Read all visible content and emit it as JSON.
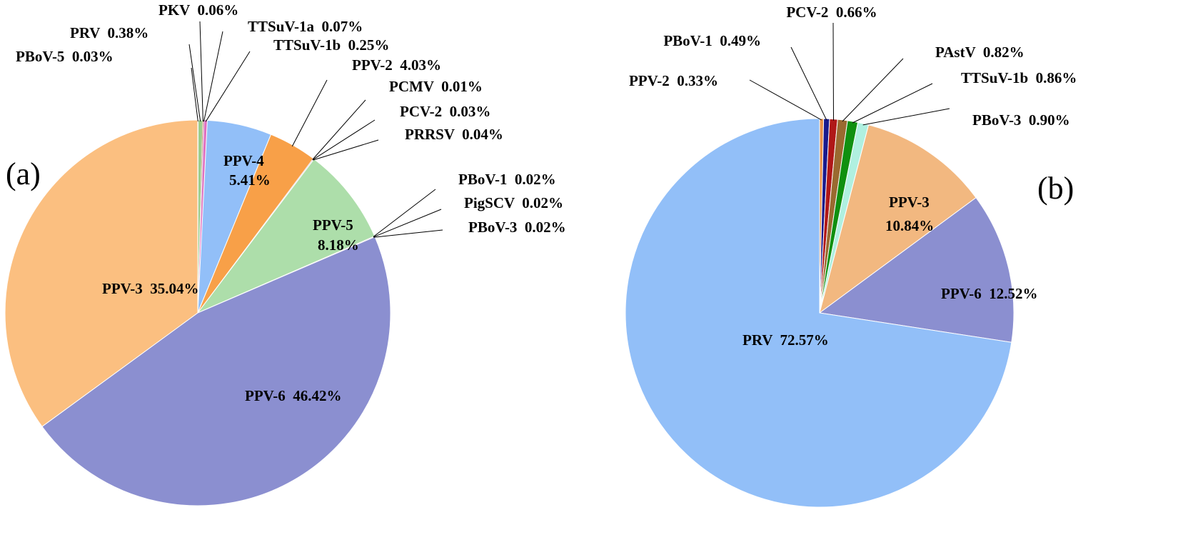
{
  "chart_data": [
    {
      "type": "pie",
      "panel_label": "(a)",
      "slices": [
        {
          "name": "PBoV-5",
          "value": 0.03,
          "value_label": "0.03%",
          "color": "#e8a070"
        },
        {
          "name": "PRV",
          "value": 0.38,
          "value_label": "0.38%",
          "color": "#9ccc8c"
        },
        {
          "name": "PKV",
          "value": 0.06,
          "value_label": "0.06%",
          "color": "#c05a28"
        },
        {
          "name": "TTSuV-1a",
          "value": 0.07,
          "value_label": "0.07%",
          "color": "#d2b4e0"
        },
        {
          "name": "TTSuV-1b",
          "value": 0.25,
          "value_label": "0.25%",
          "color": "#e070c0"
        },
        {
          "name": "PPV-4",
          "value": 5.41,
          "value_label": "5.41%",
          "color": "#92bff8"
        },
        {
          "name": "PPV-2",
          "value": 4.03,
          "value_label": "4.03%",
          "color": "#f8a048"
        },
        {
          "name": "PCMV",
          "value": 0.01,
          "value_label": "0.01%",
          "color": "#7070c0"
        },
        {
          "name": "PCV-2",
          "value": 0.03,
          "value_label": "0.03%",
          "color": "#d0a0d0"
        },
        {
          "name": "PRRSV",
          "value": 0.04,
          "value_label": "0.04%",
          "color": "#b08060"
        },
        {
          "name": "PPV-5",
          "value": 8.18,
          "value_label": "8.18%",
          "color": "#addeaa"
        },
        {
          "name": "PBoV-1",
          "value": 0.02,
          "value_label": "0.02%",
          "color": "#e0a0a0"
        },
        {
          "name": "PigSCV",
          "value": 0.02,
          "value_label": "0.02%",
          "color": "#a0a0a0"
        },
        {
          "name": "PBoV-3",
          "value": 0.02,
          "value_label": "0.02%",
          "color": "#c0c080"
        },
        {
          "name": "PPV-6",
          "value": 46.42,
          "value_label": "46.42%",
          "color": "#8b8fd0"
        },
        {
          "name": "PPV-3",
          "value": 35.04,
          "value_label": "35.04%",
          "color": "#fbbf80"
        }
      ]
    },
    {
      "type": "pie",
      "panel_label": "(b)",
      "slices": [
        {
          "name": "PPV-2",
          "value": 0.33,
          "value_label": "0.33%",
          "color": "#e8904a"
        },
        {
          "name": "PBoV-1",
          "value": 0.49,
          "value_label": "0.49%",
          "color": "#1a1a8c"
        },
        {
          "name": "PCV-2",
          "value": 0.66,
          "value_label": "0.66%",
          "color": "#b01818"
        },
        {
          "name": "PAstV",
          "value": 0.82,
          "value_label": "0.82%",
          "color": "#9a6a30"
        },
        {
          "name": "TTSuV-1b",
          "value": 0.86,
          "value_label": "0.86%",
          "color": "#109010"
        },
        {
          "name": "PBoV-3",
          "value": 0.9,
          "value_label": "0.90%",
          "color": "#b0f0e0"
        },
        {
          "name": "PPV-3",
          "value": 10.84,
          "value_label": "10.84%",
          "color": "#f2b880"
        },
        {
          "name": "PPV-6",
          "value": 12.52,
          "value_label": "12.52%",
          "color": "#8b8fd0"
        },
        {
          "name": "PRV",
          "value": 72.57,
          "value_label": "72.57%",
          "color": "#92bff8"
        }
      ]
    }
  ]
}
